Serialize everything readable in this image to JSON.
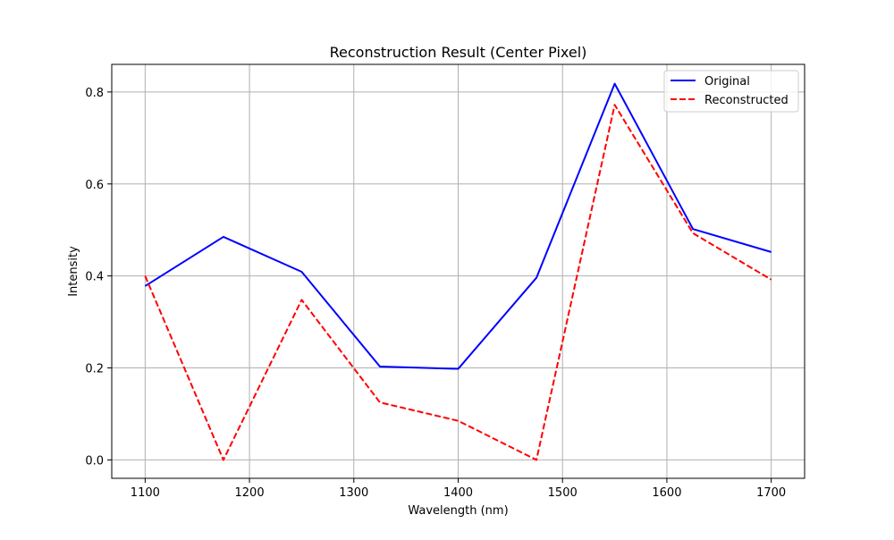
{
  "chart_data": {
    "type": "line",
    "title": "Reconstruction Result (Center Pixel)",
    "xlabel": "Wavelength (nm)",
    "ylabel": "Intensity",
    "xlim": [
      1068,
      1732
    ],
    "ylim": [
      -0.04,
      0.86
    ],
    "xticks": [
      1100,
      1200,
      1300,
      1400,
      1500,
      1600,
      1700
    ],
    "yticks": [
      0.0,
      0.2,
      0.4,
      0.6,
      0.8
    ],
    "ytick_labels": [
      "0.0",
      "0.2",
      "0.4",
      "0.6",
      "0.8"
    ],
    "grid": true,
    "legend_position": "top-right",
    "x": [
      1100,
      1175,
      1250,
      1325,
      1400,
      1475,
      1550,
      1625,
      1700
    ],
    "series": [
      {
        "name": "Original",
        "color": "#0000ff",
        "dash": "solid",
        "values": [
          0.378,
          0.485,
          0.409,
          0.203,
          0.198,
          0.396,
          0.818,
          0.502,
          0.452
        ]
      },
      {
        "name": "Reconstructed",
        "color": "#ff0000",
        "dash": "dashed",
        "values": [
          0.4,
          0.0,
          0.348,
          0.125,
          0.085,
          0.0,
          0.772,
          0.493,
          0.392
        ]
      }
    ]
  }
}
